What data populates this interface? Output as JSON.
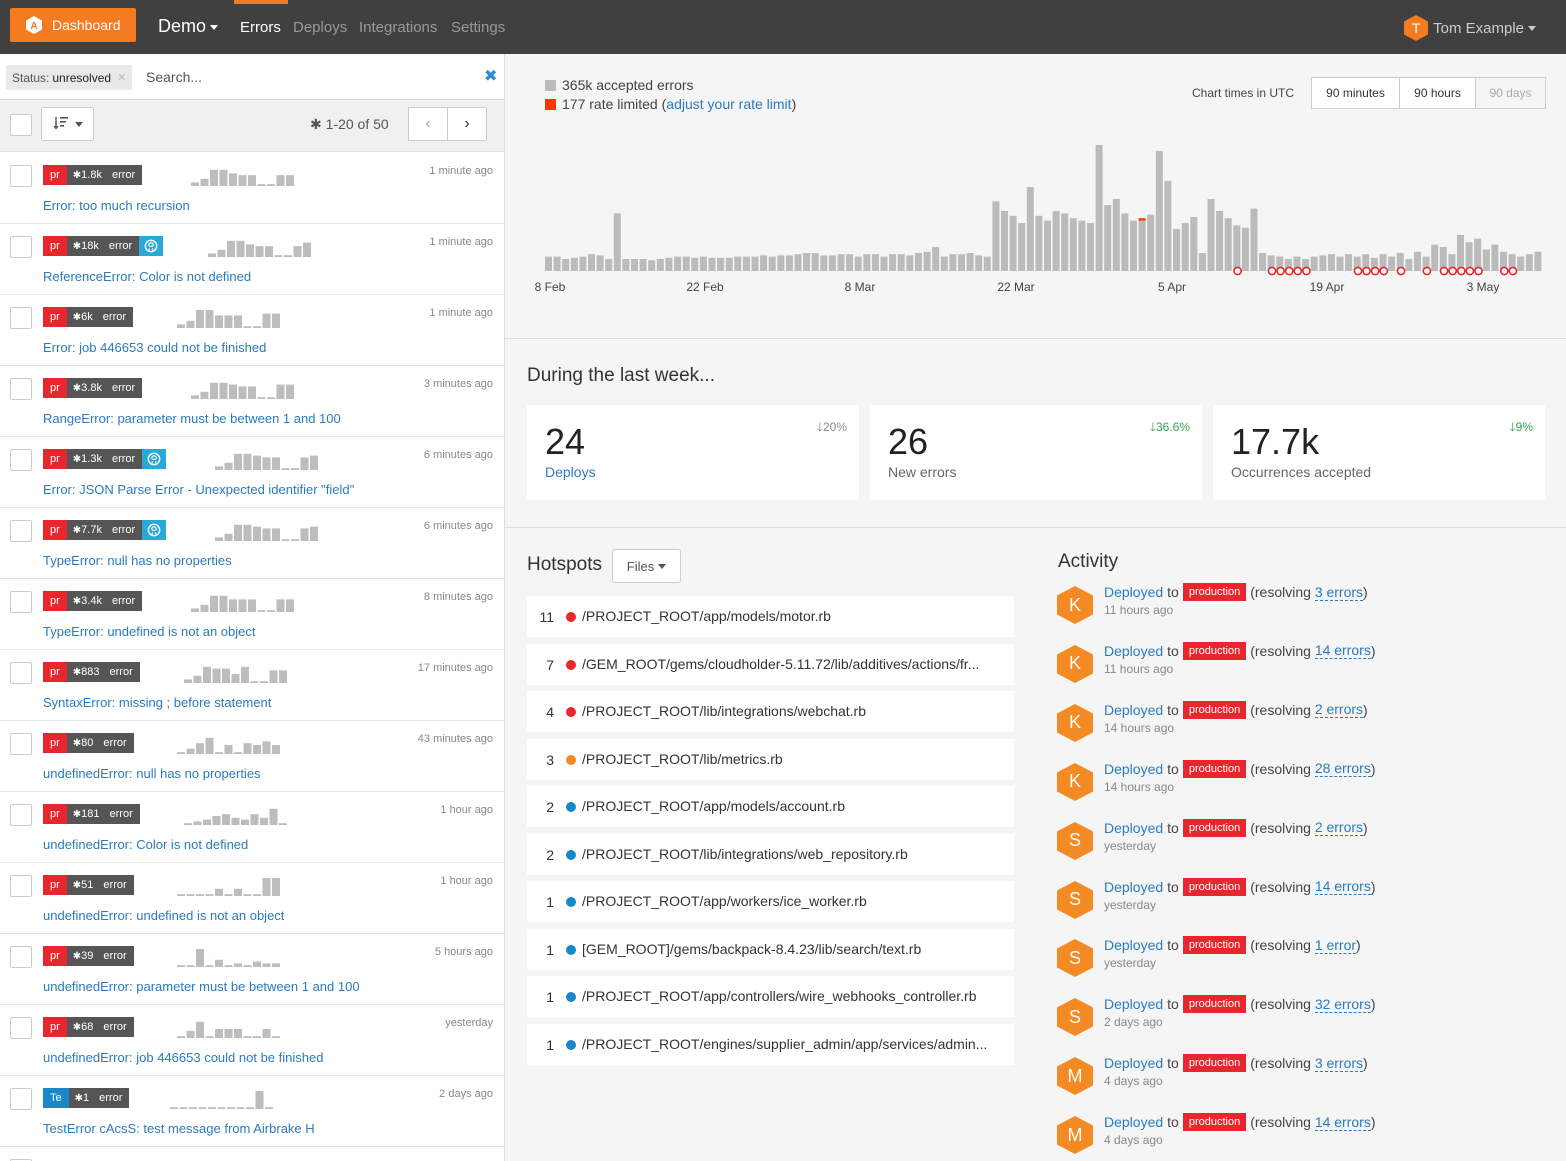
{
  "nav": {
    "dashboard_label": "Dashboard",
    "project_name": "Demo",
    "tabs": [
      "Errors",
      "Deploys",
      "Integrations",
      "Settings"
    ],
    "active_tab": "Errors",
    "user_initial": "T",
    "user_name": "Tom Example",
    "accent_color": "#f47b20"
  },
  "filter": {
    "status_key": "Status:",
    "status_value": "unresolved",
    "search_placeholder": "Search..."
  },
  "toolbar": {
    "pager_text": "1-20 of 50",
    "prev_icon": "chevron-left-icon",
    "next_icon": "chevron-right-icon"
  },
  "errors": [
    {
      "env": "pr",
      "count": "1.8k",
      "type": "error",
      "github": false,
      "ago": "1 minute ago",
      "kind": "Error:",
      "msg": "too much recursion",
      "spark": [
        2,
        4,
        9,
        9,
        7,
        6,
        6,
        1,
        1,
        6,
        6
      ]
    },
    {
      "env": "pr",
      "count": "18k",
      "type": "error",
      "github": true,
      "ago": "1 minute ago",
      "kind": "ReferenceError:",
      "msg": "Color is not defined",
      "spark": [
        2,
        4,
        9,
        9,
        7,
        6,
        6,
        1,
        1,
        6,
        8
      ]
    },
    {
      "env": "pr",
      "count": "6k",
      "type": "error",
      "github": false,
      "ago": "1 minute ago",
      "kind": "Error:",
      "msg": "job 446653 could not be finished",
      "spark": [
        2,
        4,
        10,
        10,
        7,
        7,
        7,
        1,
        1,
        8,
        8
      ]
    },
    {
      "env": "pr",
      "count": "3.8k",
      "type": "error",
      "github": false,
      "ago": "3 minutes ago",
      "kind": "RangeError:",
      "msg": "parameter must be between 1 and 100",
      "spark": [
        2,
        4,
        9,
        9,
        8,
        7,
        7,
        1,
        1,
        8,
        8
      ]
    },
    {
      "env": "pr",
      "count": "1.3k",
      "type": "error",
      "github": true,
      "ago": "6 minutes ago",
      "kind": "Error:",
      "msg": "JSON Parse Error - Unexpected identifier \"field\"",
      "spark": [
        2,
        4,
        9,
        9,
        8,
        7,
        7,
        1,
        1,
        7,
        8
      ]
    },
    {
      "env": "pr",
      "count": "7.7k",
      "type": "error",
      "github": true,
      "ago": "6 minutes ago",
      "kind": "TypeError:",
      "msg": "null has no properties",
      "spark": [
        2,
        4,
        9,
        9,
        8,
        7,
        7,
        1,
        1,
        7,
        8
      ]
    },
    {
      "env": "pr",
      "count": "3.4k",
      "type": "error",
      "github": false,
      "ago": "8 minutes ago",
      "kind": "TypeError:",
      "msg": "undefined is not an object",
      "spark": [
        2,
        4,
        9,
        9,
        7,
        7,
        7,
        1,
        1,
        7,
        7
      ]
    },
    {
      "env": "pr",
      "count": "883",
      "type": "error",
      "github": false,
      "ago": "17 minutes ago",
      "kind": "SyntaxError:",
      "msg": "missing ; before statement",
      "spark": [
        2,
        4,
        9,
        8,
        8,
        5,
        9,
        1,
        1,
        7,
        7
      ]
    },
    {
      "env": "pr",
      "count": "80",
      "type": "error",
      "github": false,
      "ago": "43 minutes ago",
      "kind": "undefinedError:",
      "msg": "null has no properties",
      "spark": [
        1,
        3,
        6,
        9,
        1,
        5,
        1,
        6,
        5,
        7,
        5
      ]
    },
    {
      "env": "pr",
      "count": "181",
      "type": "error",
      "github": false,
      "ago": "1 hour ago",
      "kind": "undefinedError:",
      "msg": "Color is not defined",
      "spark": [
        1,
        2,
        3,
        5,
        6,
        4,
        3,
        6,
        4,
        9,
        1
      ]
    },
    {
      "env": "pr",
      "count": "51",
      "type": "error",
      "github": false,
      "ago": "1 hour ago",
      "kind": "undefinedError:",
      "msg": "undefined is not an object",
      "spark": [
        1,
        1,
        1,
        1,
        4,
        1,
        4,
        1,
        1,
        10,
        10
      ]
    },
    {
      "env": "pr",
      "count": "39",
      "type": "error",
      "github": false,
      "ago": "5 hours ago",
      "kind": "undefinedError:",
      "msg": "parameter must be between 1 and 100",
      "spark": [
        1,
        1,
        10,
        1,
        4,
        1,
        2,
        1,
        3,
        2,
        2
      ]
    },
    {
      "env": "pr",
      "count": "68",
      "type": "error",
      "github": false,
      "ago": "yesterday",
      "kind": "undefinedError:",
      "msg": "job 446653 could not be finished",
      "spark": [
        1,
        4,
        9,
        1,
        5,
        5,
        5,
        1,
        1,
        5,
        1
      ]
    },
    {
      "env": "Te",
      "count": "1",
      "type": "error",
      "github": false,
      "ago": "2 days ago",
      "kind": "TestError cAcsS:",
      "msg": "test message from Airbrake H",
      "spark": [
        1,
        1,
        1,
        1,
        1,
        1,
        1,
        1,
        1,
        10,
        1
      ]
    }
  ],
  "chart": {
    "legend_accepted": "365k accepted errors",
    "legend_limited_prefix": "177 rate limited (",
    "legend_limited_link": "adjust your rate limit",
    "legend_limited_suffix": ")",
    "accepted_color": "#bbbbbb",
    "limited_color": "#ff3300",
    "utc_label": "Chart times in UTC",
    "ranges": [
      "90 minutes",
      "90 hours",
      "90 days"
    ],
    "active_range": "90 hours",
    "disabled_range": "90 days",
    "x_ticks": [
      "8 Feb",
      "22 Feb",
      "8 Mar",
      "22 Mar",
      "5 Apr",
      "19 Apr",
      "3 May"
    ]
  },
  "chart_data": {
    "type": "bar",
    "title": "",
    "series": [
      {
        "name": "365k accepted errors",
        "values": [
          12,
          12,
          10,
          11,
          12,
          14,
          13,
          10,
          48,
          10,
          10,
          10,
          9,
          10,
          11,
          12,
          12,
          11,
          12,
          11,
          11,
          11,
          12,
          12,
          12,
          13,
          12,
          13,
          13,
          14,
          15,
          15,
          13,
          13,
          14,
          14,
          12,
          14,
          14,
          12,
          14,
          14,
          13,
          15,
          16,
          20,
          12,
          14,
          14,
          15,
          13,
          12,
          58,
          50,
          46,
          40,
          70,
          46,
          42,
          50,
          48,
          44,
          42,
          40,
          105,
          55,
          60,
          48,
          42,
          42,
          47,
          100,
          75,
          35,
          40,
          45,
          15,
          60,
          50,
          44,
          38,
          36,
          52,
          15,
          13,
          12,
          10,
          12,
          10,
          12,
          13,
          14,
          12,
          14,
          12,
          14,
          11,
          14,
          12,
          15,
          10,
          16,
          12,
          22,
          20,
          14,
          30,
          24,
          27,
          18,
          22,
          16,
          14,
          12,
          14,
          16
        ]
      },
      {
        "name": "177 rate limited",
        "values": [
          0,
          0,
          0,
          0,
          0,
          0,
          0,
          0,
          0,
          0,
          0,
          0,
          0,
          0,
          0,
          0,
          0,
          0,
          0,
          0,
          0,
          0,
          0,
          0,
          0,
          0,
          0,
          0,
          0,
          0,
          0,
          0,
          0,
          0,
          0,
          0,
          0,
          0,
          0,
          0,
          0,
          0,
          0,
          0,
          0,
          0,
          0,
          0,
          0,
          0,
          0,
          0,
          0,
          0,
          0,
          0,
          0,
          0,
          0,
          0,
          0,
          0,
          0,
          0,
          0,
          0,
          0,
          0,
          0,
          2,
          0,
          0,
          0,
          0,
          0,
          0,
          0,
          0,
          0,
          0,
          0,
          0,
          0,
          0,
          0,
          0,
          0,
          0,
          0,
          0,
          0,
          0,
          0,
          0,
          0,
          0,
          0,
          0,
          0,
          0,
          0,
          0,
          0,
          0,
          0,
          0,
          0,
          0,
          0,
          0,
          0,
          0,
          0,
          0,
          0,
          0
        ]
      }
    ],
    "missing_markers": [
      80,
      84,
      85,
      86,
      87,
      88,
      94,
      95,
      96,
      97,
      99,
      102,
      104,
      105,
      106,
      107,
      108,
      111,
      112
    ],
    "grid": false
  },
  "week": {
    "title": "During the last week...",
    "stats": [
      {
        "num": "24",
        "label": "Deploys",
        "delta": "20%",
        "dir": "down",
        "delta_color": "#888888",
        "link": true
      },
      {
        "num": "26",
        "label": "New errors",
        "delta": "36.6%",
        "dir": "down",
        "delta_color": "#2fa84f",
        "link": false
      },
      {
        "num": "17.7k",
        "label": "Occurrences accepted",
        "delta": "9%",
        "dir": "down",
        "delta_color": "#2fa84f",
        "link": false
      }
    ]
  },
  "hotspots": {
    "title": "Hotspots",
    "files_label": "Files",
    "rows": [
      {
        "n": "11",
        "color": "#e7262d",
        "path": "/PROJECT_ROOT/app/models/motor.rb"
      },
      {
        "n": "7",
        "color": "#e7262d",
        "path": "/GEM_ROOT/gems/cloudholder-5.11.72/lib/additives/actions/fr..."
      },
      {
        "n": "4",
        "color": "#e7262d",
        "path": "/PROJECT_ROOT/lib/integrations/webchat.rb"
      },
      {
        "n": "3",
        "color": "#f48a24",
        "path": "/PROJECT_ROOT/lib/metrics.rb"
      },
      {
        "n": "2",
        "color": "#1a87c8",
        "path": "/PROJECT_ROOT/app/models/account.rb"
      },
      {
        "n": "2",
        "color": "#1a87c8",
        "path": "/PROJECT_ROOT/lib/integrations/web_repository.rb"
      },
      {
        "n": "1",
        "color": "#1a87c8",
        "path": "/PROJECT_ROOT/app/workers/ice_worker.rb"
      },
      {
        "n": "1",
        "color": "#1a87c8",
        "path": "[GEM_ROOT]/gems/backpack-8.4.23/lib/search/text.rb"
      },
      {
        "n": "1",
        "color": "#1a87c8",
        "path": "/PROJECT_ROOT/app/controllers/wire_webhooks_controller.rb"
      },
      {
        "n": "1",
        "color": "#1a87c8",
        "path": "/PROJECT_ROOT/engines/supplier_admin/app/services/admin..."
      }
    ]
  },
  "activity": {
    "title": "Activity",
    "rows": [
      {
        "initial": "K",
        "action": "Deployed",
        "to": "to",
        "env": "production",
        "res_prefix": "(resolving ",
        "count": "3 errors",
        "res_suffix": ")",
        "time": "11 hours ago"
      },
      {
        "initial": "K",
        "action": "Deployed",
        "to": "to",
        "env": "production",
        "res_prefix": "(resolving ",
        "count": "14 errors",
        "res_suffix": ")",
        "time": "11 hours ago"
      },
      {
        "initial": "K",
        "action": "Deployed",
        "to": "to",
        "env": "production",
        "res_prefix": "(resolving ",
        "count": "2 errors",
        "res_suffix": ")",
        "time": "14 hours ago"
      },
      {
        "initial": "K",
        "action": "Deployed",
        "to": "to",
        "env": "production",
        "res_prefix": "(resolving ",
        "count": "28 errors",
        "res_suffix": ")",
        "time": "14 hours ago"
      },
      {
        "initial": "S",
        "action": "Deployed",
        "to": "to",
        "env": "production",
        "res_prefix": "(resolving ",
        "count": "2 errors",
        "res_suffix": ")",
        "time": "yesterday"
      },
      {
        "initial": "S",
        "action": "Deployed",
        "to": "to",
        "env": "production",
        "res_prefix": "(resolving ",
        "count": "14 errors",
        "res_suffix": ")",
        "time": "yesterday"
      },
      {
        "initial": "S",
        "action": "Deployed",
        "to": "to",
        "env": "production",
        "res_prefix": "(resolving ",
        "count": "1 error",
        "res_suffix": ")",
        "time": "yesterday"
      },
      {
        "initial": "S",
        "action": "Deployed",
        "to": "to",
        "env": "production",
        "res_prefix": "(resolving ",
        "count": "32 errors",
        "res_suffix": ")",
        "time": "2 days ago"
      },
      {
        "initial": "M",
        "action": "Deployed",
        "to": "to",
        "env": "production",
        "res_prefix": "(resolving ",
        "count": "3 errors",
        "res_suffix": ")",
        "time": "4 days ago"
      },
      {
        "initial": "M",
        "action": "Deployed",
        "to": "to",
        "env": "production",
        "res_prefix": "(resolving ",
        "count": "14 errors",
        "res_suffix": ")",
        "time": "4 days ago"
      }
    ]
  }
}
